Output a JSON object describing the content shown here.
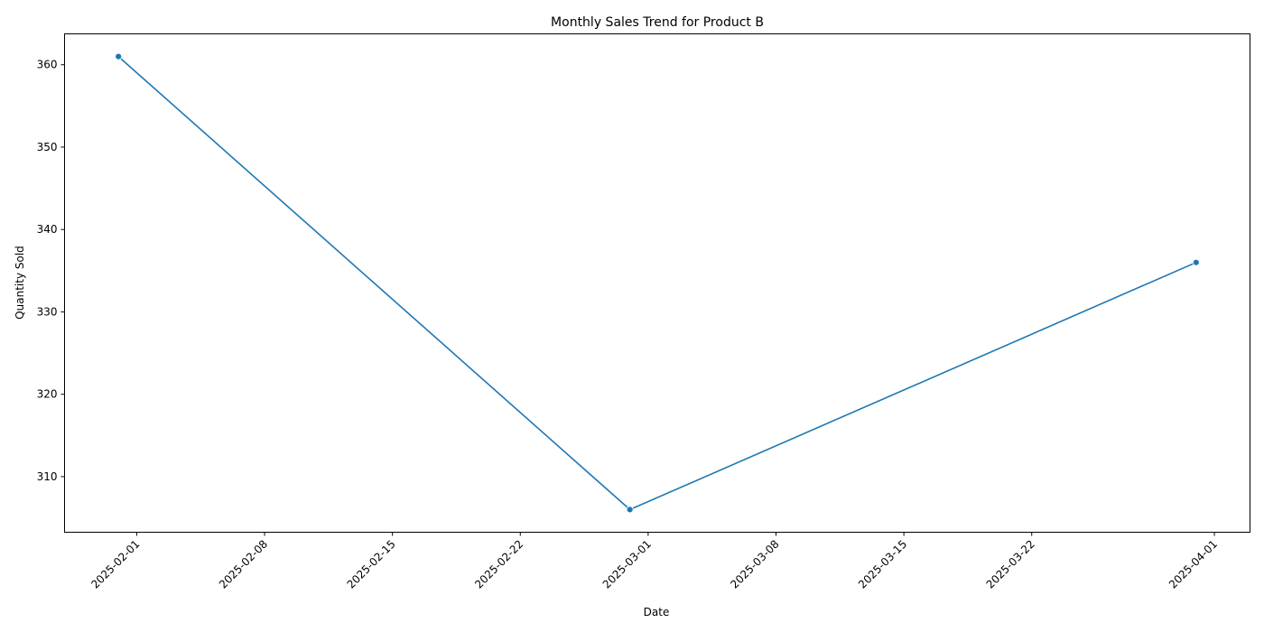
{
  "chart_data": {
    "type": "line",
    "title": "Monthly Sales Trend for Product B",
    "xlabel": "Date",
    "ylabel": "Quantity Sold",
    "grid": false,
    "legend": "none",
    "x_axis": {
      "kind": "date",
      "ticks": [
        "2025-02-01",
        "2025-02-08",
        "2025-02-15",
        "2025-02-22",
        "2025-03-01",
        "2025-03-08",
        "2025-03-15",
        "2025-03-22",
        "2025-04-01"
      ],
      "tick_rotation_deg": 45
    },
    "y_axis": {
      "ticks": [
        310,
        320,
        330,
        340,
        350,
        360
      ],
      "ylim": [
        303.25,
        363.75
      ]
    },
    "series": [
      {
        "color": "#1f77b4",
        "marker": "circle",
        "x": [
          "2025-01-31",
          "2025-02-28",
          "2025-03-31"
        ],
        "y": [
          361,
          306,
          336
        ]
      }
    ]
  }
}
